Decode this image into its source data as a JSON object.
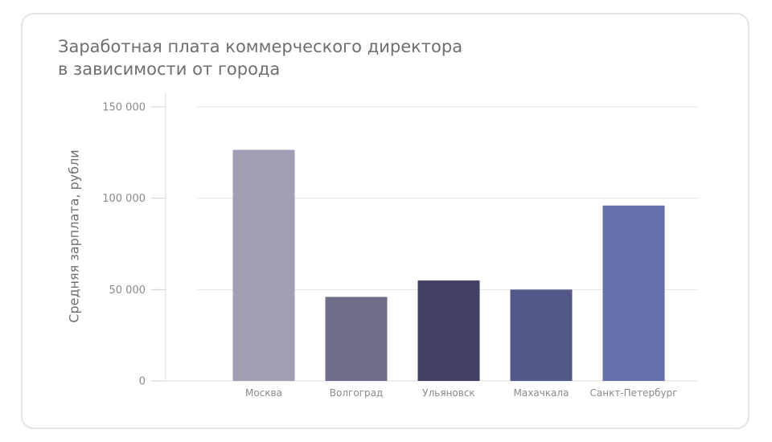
{
  "chart_data": {
    "type": "bar",
    "title_lines": [
      "Заработная плата коммерческого директора",
      "в зависимости от города"
    ],
    "xlabel": "",
    "ylabel": "Средняя зарплата, рубли",
    "categories": [
      "Москва",
      "Волгоград",
      "Ульяновск",
      "Махачкала",
      "Санкт-Петербург"
    ],
    "values": [
      126500,
      46000,
      55000,
      50000,
      96000
    ],
    "ylim": [
      0,
      150000
    ],
    "yticks": [
      0,
      50000,
      100000,
      150000
    ],
    "ytick_labels": [
      "0",
      "50 000",
      "100 000",
      "150 000"
    ],
    "colors": [
      "#a09fb4",
      "#6e6e8a",
      "#424163",
      "#535889",
      "#6670aa"
    ],
    "grid": true,
    "legend": "none"
  }
}
